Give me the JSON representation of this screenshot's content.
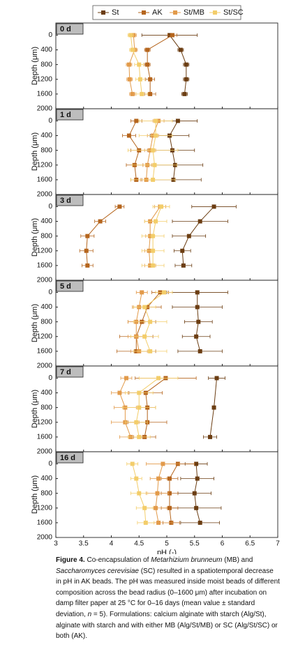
{
  "legend_names_from": "St",
  "chart_data": [
    {
      "type": "line",
      "label": "0 d",
      "ylabel": "Depth (μm)",
      "xlabel": "pH (-)",
      "y": [
        0,
        400,
        800,
        1200,
        1600
      ],
      "xlim": [
        3,
        7
      ],
      "xticks": [
        3,
        3.5,
        4,
        4.5,
        5,
        5.5,
        6,
        6.5,
        7
      ],
      "ylim": [
        -330,
        2000
      ],
      "yticks": [
        0,
        400,
        800,
        1200,
        1600,
        2000
      ],
      "y_inverted": true,
      "series": [
        {
          "name": "St",
          "color": "#6b3d12",
          "values": [
            5.05,
            5.25,
            5.35,
            5.35,
            5.32
          ],
          "errors": [
            0.5,
            0.05,
            0.05,
            0.05,
            0.05
          ]
        },
        {
          "name": "AK",
          "color": "#b5651d",
          "values": [
            5.1,
            4.65,
            4.65,
            4.7,
            4.7
          ],
          "errors": [
            0.08,
            0.05,
            0.05,
            0.08,
            0.1
          ]
        },
        {
          "name": "St/MB",
          "color": "#e29a4a",
          "values": [
            4.4,
            4.42,
            4.32,
            4.33,
            4.38
          ],
          "errors": [
            0.05,
            0.05,
            0.05,
            0.05,
            0.05
          ]
        },
        {
          "name": "St/SC",
          "color": "#f3cd6a",
          "values": [
            4.35,
            4.38,
            4.5,
            4.52,
            4.55
          ],
          "errors": [
            0.05,
            0.05,
            0.08,
            0.08,
            0.1
          ]
        }
      ]
    },
    {
      "type": "line",
      "label": "1 d",
      "ylabel": "Depth (μm)",
      "xlabel": "pH (-)",
      "y": [
        0,
        400,
        800,
        1200,
        1600
      ],
      "xlim": [
        3,
        7
      ],
      "xticks": [
        3,
        3.5,
        4,
        4.5,
        5,
        5.5,
        6,
        6.5,
        7
      ],
      "ylim": [
        -330,
        2000
      ],
      "yticks": [
        0,
        400,
        800,
        1200,
        1600,
        2000
      ],
      "y_inverted": true,
      "series": [
        {
          "name": "St",
          "color": "#6b3d12",
          "values": [
            5.2,
            5.05,
            5.1,
            5.15,
            5.12
          ],
          "errors": [
            0.35,
            0.35,
            0.4,
            0.5,
            0.5
          ]
        },
        {
          "name": "AK",
          "color": "#b5651d",
          "values": [
            4.45,
            4.32,
            4.5,
            4.42,
            4.45
          ],
          "errors": [
            0.1,
            0.12,
            0.15,
            0.15,
            0.1
          ]
        },
        {
          "name": "St/MB",
          "color": "#e29a4a",
          "values": [
            4.85,
            4.75,
            4.7,
            4.65,
            4.63
          ],
          "errors": [
            0.1,
            0.1,
            0.1,
            0.08,
            0.1
          ]
        },
        {
          "name": "St/SC",
          "color": "#f3cd6a",
          "values": [
            4.8,
            4.8,
            4.75,
            4.78,
            4.75
          ],
          "errors": [
            0.3,
            0.3,
            0.45,
            0.4,
            0.4
          ]
        }
      ]
    },
    {
      "type": "line",
      "label": "3 d",
      "ylabel": "Depth (μm)",
      "xlabel": "pH (-)",
      "y": [
        0,
        400,
        800,
        1200,
        1600
      ],
      "xlim": [
        3,
        7
      ],
      "xticks": [
        3,
        3.5,
        4,
        4.5,
        5,
        5.5,
        6,
        6.5,
        7
      ],
      "ylim": [
        -330,
        2000
      ],
      "yticks": [
        0,
        400,
        800,
        1200,
        1600,
        2000
      ],
      "y_inverted": true,
      "series": [
        {
          "name": "St",
          "color": "#6b3d12",
          "values": [
            5.85,
            5.6,
            5.4,
            5.28,
            5.3
          ],
          "errors": [
            0.4,
            0.5,
            0.3,
            0.15,
            0.15
          ]
        },
        {
          "name": "AK",
          "color": "#b5651d",
          "values": [
            4.15,
            3.8,
            3.57,
            3.55,
            3.57
          ],
          "errors": [
            0.08,
            0.1,
            0.12,
            0.12,
            0.1
          ]
        },
        {
          "name": "St/MB",
          "color": "#e29a4a",
          "values": [
            4.88,
            4.7,
            4.7,
            4.68,
            4.7
          ],
          "errors": [
            0.1,
            0.1,
            0.08,
            0.08,
            0.1
          ]
        },
        {
          "name": "St/SC",
          "color": "#f3cd6a",
          "values": [
            4.9,
            4.8,
            4.75,
            4.75,
            4.75
          ],
          "errors": [
            0.15,
            0.2,
            0.2,
            0.2,
            0.2
          ]
        }
      ]
    },
    {
      "type": "line",
      "label": "5 d",
      "ylabel": "Depth (μm)",
      "xlabel": "pH (-)",
      "y": [
        0,
        400,
        800,
        1200,
        1600
      ],
      "xlim": [
        3,
        7
      ],
      "xticks": [
        3,
        3.5,
        4,
        4.5,
        5,
        5.5,
        6,
        6.5,
        7
      ],
      "ylim": [
        -330,
        2000
      ],
      "yticks": [
        0,
        400,
        800,
        1200,
        1600,
        2000
      ],
      "y_inverted": true,
      "series": [
        {
          "name": "St",
          "color": "#6b3d12",
          "values": [
            5.55,
            5.55,
            5.57,
            5.53,
            5.6
          ],
          "errors": [
            0.55,
            0.45,
            0.25,
            0.25,
            0.4
          ]
        },
        {
          "name": "AK",
          "color": "#b5651d",
          "values": [
            4.88,
            4.65,
            4.55,
            4.45,
            4.45
          ],
          "errors": [
            0.15,
            0.25,
            0.25,
            0.3,
            0.35
          ]
        },
        {
          "name": "St/MB",
          "color": "#e29a4a",
          "values": [
            4.55,
            4.5,
            4.45,
            4.45,
            4.5
          ],
          "errors": [
            0.1,
            0.12,
            0.15,
            0.15,
            0.15
          ]
        },
        {
          "name": "St/SC",
          "color": "#f3cd6a",
          "values": [
            4.95,
            4.6,
            4.7,
            4.6,
            4.7
          ],
          "errors": [
            0.15,
            0.2,
            0.3,
            0.25,
            0.3
          ]
        }
      ]
    },
    {
      "type": "line",
      "label": "7 d",
      "ylabel": "Depth (μm)",
      "xlabel": "pH (-)",
      "y": [
        0,
        400,
        800,
        1200,
        1600
      ],
      "xlim": [
        3,
        7
      ],
      "xticks": [
        3,
        3.5,
        4,
        4.5,
        5,
        5.5,
        6,
        6.5,
        7
      ],
      "ylim": [
        -330,
        2000
      ],
      "yticks": [
        0,
        400,
        800,
        1200,
        1600,
        2000
      ],
      "y_inverted": true,
      "series": [
        {
          "name": "St",
          "color": "#6b3d12",
          "y": [
            0,
            800,
            1600
          ],
          "values": [
            5.9,
            5.85,
            5.78
          ],
          "errors": [
            0.15,
            0.03,
            0.12
          ]
        },
        {
          "name": "AK",
          "color": "#b5651d",
          "values": [
            4.98,
            4.62,
            4.65,
            4.65,
            4.6
          ],
          "errors": [
            0.55,
            0.3,
            0.15,
            0.35,
            0.2
          ]
        },
        {
          "name": "St/MB",
          "color": "#e29a4a",
          "values": [
            4.27,
            4.15,
            4.25,
            4.25,
            4.35
          ],
          "errors": [
            0.1,
            0.15,
            0.2,
            0.25,
            0.2
          ]
        },
        {
          "name": "St/SC",
          "color": "#f3cd6a",
          "values": [
            4.85,
            4.5,
            4.5,
            4.45,
            4.5
          ],
          "errors": [
            0.35,
            0.25,
            0.3,
            0.2,
            0.2
          ]
        }
      ]
    },
    {
      "type": "line",
      "label": "16 d",
      "ylabel": "Depth (μm)",
      "xlabel": "pH (-)",
      "y": [
        0,
        400,
        800,
        1200,
        1600
      ],
      "xlim": [
        3,
        7
      ],
      "xticks": [
        3,
        3.5,
        4,
        4.5,
        5,
        5.5,
        6,
        6.5,
        7
      ],
      "ylim": [
        -330,
        2000
      ],
      "yticks": [
        0,
        400,
        800,
        1200,
        1600,
        2000
      ],
      "y_inverted": true,
      "series": [
        {
          "name": "St",
          "color": "#6b3d12",
          "values": [
            5.53,
            5.55,
            5.5,
            5.53,
            5.6
          ],
          "errors": [
            0.2,
            0.3,
            0.3,
            0.45,
            0.35
          ]
        },
        {
          "name": "AK",
          "color": "#b5651d",
          "values": [
            5.2,
            5.05,
            5.05,
            5.05,
            5.08
          ],
          "errors": [
            0.3,
            0.15,
            0.15,
            0.15,
            0.15
          ]
        },
        {
          "name": "St/MB",
          "color": "#e29a4a",
          "values": [
            4.93,
            4.85,
            4.83,
            4.8,
            4.85
          ],
          "errors": [
            0.3,
            0.15,
            0.2,
            0.2,
            0.25
          ]
        },
        {
          "name": "St/SC",
          "color": "#f3cd6a",
          "values": [
            4.38,
            4.45,
            4.5,
            4.6,
            4.62
          ],
          "errors": [
            0.1,
            0.1,
            0.15,
            0.15,
            0.15
          ]
        }
      ]
    }
  ],
  "caption": [
    "Figure 4.",
    " Co-encapsulation of ",
    "Metarhizium brunneum",
    " (MB) and ",
    "Saccharomyces cerevisiae",
    " (SC) resulted in a spatiotemporal decrease in pH in AK beads. The pH was measured inside moist beads of different composition across the bead radius (0–1600 μm) after incubation on damp filter paper at 25 °C for 0–16 days (mean value ± standard deviation, ",
    "n",
    " = 5). Formulations: calcium alginate with starch (Alg/St), alginate with starch and with either MB (Alg/St/MB) or SC (Alg/St/SC) or both (AK)."
  ]
}
